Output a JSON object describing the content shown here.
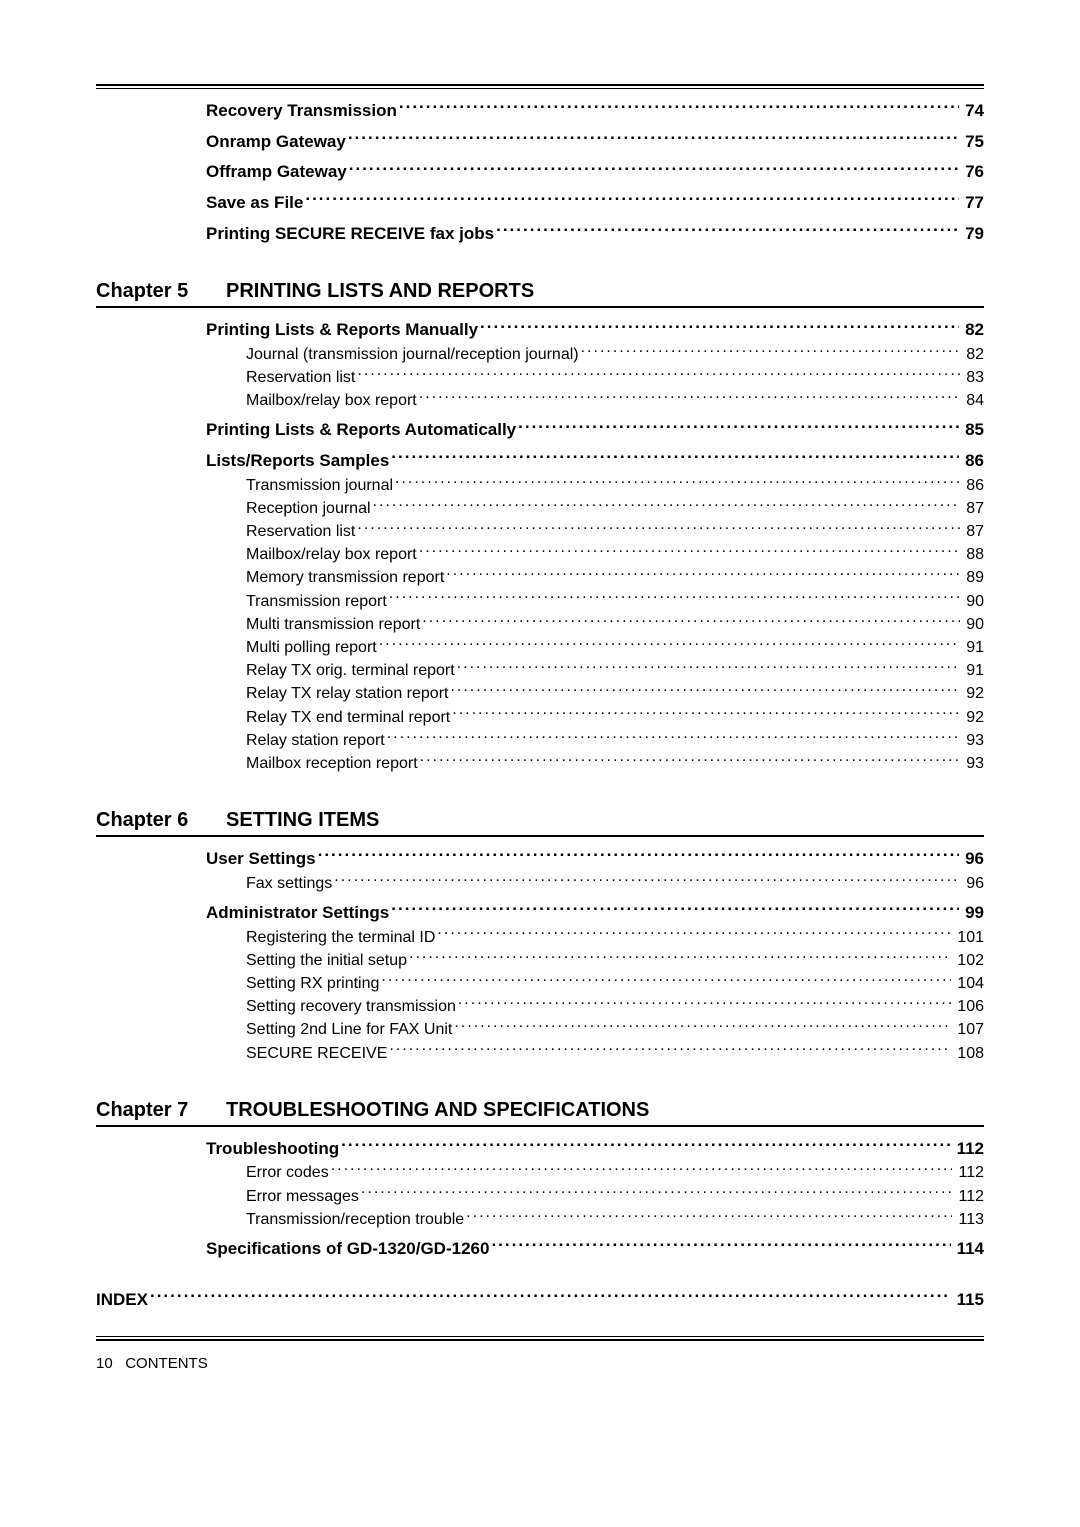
{
  "colors": {
    "text": "#000000",
    "bg": "#ffffff",
    "rule": "#000000"
  },
  "typography": {
    "family": "Arial",
    "body_pt": 16,
    "bold_pt": 17,
    "chapter_pt": 20
  },
  "toc": {
    "pre_items": [
      {
        "level": 1,
        "label": "Recovery Transmission",
        "page": "74"
      },
      {
        "level": 1,
        "label": "Onramp Gateway",
        "page": "75"
      },
      {
        "level": 1,
        "label": "Offramp Gateway",
        "page": "76"
      },
      {
        "level": 1,
        "label": "Save as File",
        "page": "77"
      },
      {
        "level": 1,
        "label": "Printing SECURE RECEIVE fax jobs",
        "page": "79"
      }
    ],
    "chapters": [
      {
        "label": "Chapter 5",
        "title": "PRINTING LISTS AND REPORTS",
        "items": [
          {
            "level": 1,
            "label": "Printing Lists & Reports Manually",
            "page": "82"
          },
          {
            "level": 2,
            "label": "Journal (transmission journal/reception journal)",
            "page": "82"
          },
          {
            "level": 2,
            "label": "Reservation list",
            "page": "83"
          },
          {
            "level": 2,
            "label": "Mailbox/relay box report",
            "page": "84"
          },
          {
            "level": 1,
            "label": "Printing Lists & Reports Automatically",
            "page": "85"
          },
          {
            "level": 1,
            "label": "Lists/Reports Samples",
            "page": "86"
          },
          {
            "level": 2,
            "label": "Transmission journal",
            "page": "86"
          },
          {
            "level": 2,
            "label": "Reception journal",
            "page": "87"
          },
          {
            "level": 2,
            "label": "Reservation list",
            "page": "87"
          },
          {
            "level": 2,
            "label": "Mailbox/relay box report",
            "page": "88"
          },
          {
            "level": 2,
            "label": "Memory transmission report",
            "page": "89"
          },
          {
            "level": 2,
            "label": "Transmission report",
            "page": "90"
          },
          {
            "level": 2,
            "label": "Multi transmission report",
            "page": "90"
          },
          {
            "level": 2,
            "label": "Multi polling report",
            "page": "91"
          },
          {
            "level": 2,
            "label": "Relay TX orig. terminal report",
            "page": "91"
          },
          {
            "level": 2,
            "label": "Relay TX relay station report",
            "page": "92"
          },
          {
            "level": 2,
            "label": "Relay TX end terminal report",
            "page": "92"
          },
          {
            "level": 2,
            "label": "Relay station report",
            "page": "93"
          },
          {
            "level": 2,
            "label": "Mailbox reception report",
            "page": "93"
          }
        ]
      },
      {
        "label": "Chapter 6",
        "title": "SETTING ITEMS",
        "items": [
          {
            "level": 1,
            "label": "User Settings",
            "page": "96"
          },
          {
            "level": 2,
            "label": "Fax settings",
            "page": "96"
          },
          {
            "level": 1,
            "label": "Administrator Settings",
            "page": "99"
          },
          {
            "level": 2,
            "label": "Registering the terminal ID",
            "page": "101"
          },
          {
            "level": 2,
            "label": "Setting the initial setup",
            "page": "102"
          },
          {
            "level": 2,
            "label": "Setting RX printing",
            "page": "104"
          },
          {
            "level": 2,
            "label": "Setting recovery transmission",
            "page": "106"
          },
          {
            "level": 2,
            "label": "Setting 2nd Line for FAX Unit",
            "page": "107"
          },
          {
            "level": 2,
            "label": "SECURE RECEIVE",
            "page": "108"
          }
        ]
      },
      {
        "label": "Chapter 7",
        "title": "TROUBLESHOOTING AND SPECIFICATIONS",
        "items": [
          {
            "level": 1,
            "label": "Troubleshooting",
            "page": "112"
          },
          {
            "level": 2,
            "label": "Error codes",
            "page": "112"
          },
          {
            "level": 2,
            "label": "Error messages",
            "page": "112"
          },
          {
            "level": 2,
            "label": "Transmission/reception trouble",
            "page": "113"
          },
          {
            "level": 1,
            "label": "Specifications of GD-1320/GD-1260",
            "page": "114"
          }
        ]
      }
    ],
    "index": {
      "level": 0,
      "label": "INDEX",
      "page": "115"
    }
  },
  "footer": {
    "page_number": "10",
    "section": "CONTENTS"
  }
}
